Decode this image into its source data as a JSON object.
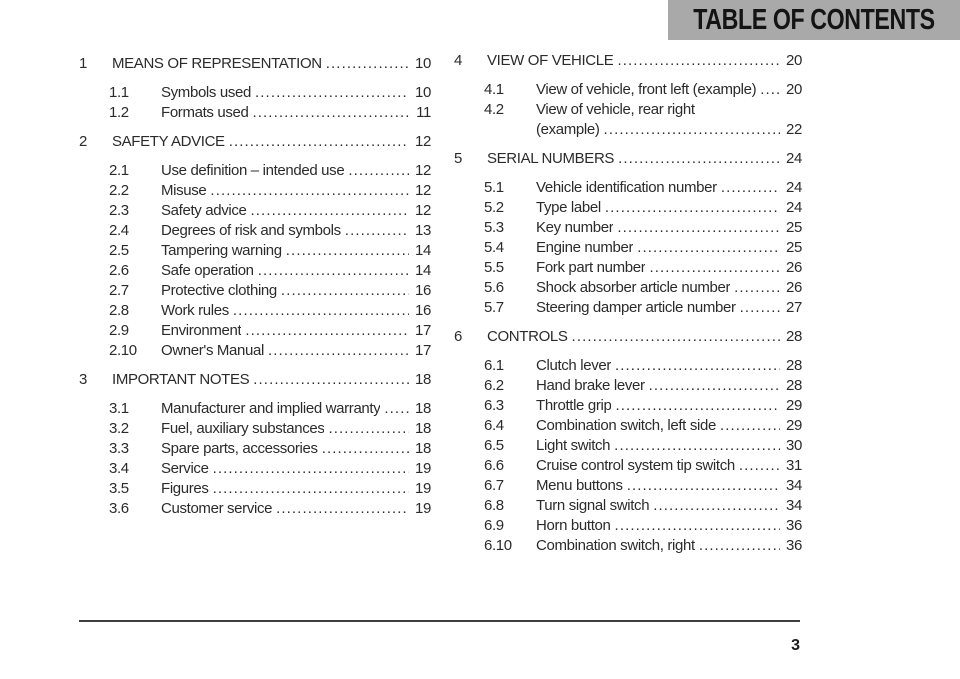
{
  "colors": {
    "header_bar": "#a9a9a9",
    "header_text": "#141414",
    "body_text": "#2b2b2b",
    "rule": "#3d3d3d"
  },
  "header": {
    "title": "TABLE OF CONTENTS"
  },
  "footer": {
    "page_number": "3"
  },
  "toc": {
    "columns": [
      {
        "sections": [
          {
            "number": "1",
            "title": "MEANS OF REPRESENTATION",
            "page": "10",
            "items": [
              {
                "number": "1.1",
                "title": "Symbols used",
                "page": "10"
              },
              {
                "number": "1.2",
                "title": "Formats used",
                "page": "11"
              }
            ]
          },
          {
            "number": "2",
            "title": "SAFETY ADVICE",
            "page": "12",
            "items": [
              {
                "number": "2.1",
                "title": "Use definition – intended use",
                "page": "12"
              },
              {
                "number": "2.2",
                "title": "Misuse",
                "page": "12"
              },
              {
                "number": "2.3",
                "title": "Safety advice",
                "page": "12"
              },
              {
                "number": "2.4",
                "title": "Degrees of risk and symbols",
                "page": "13"
              },
              {
                "number": "2.5",
                "title": "Tampering warning",
                "page": "14"
              },
              {
                "number": "2.6",
                "title": "Safe operation",
                "page": "14"
              },
              {
                "number": "2.7",
                "title": "Protective clothing",
                "page": "16"
              },
              {
                "number": "2.8",
                "title": "Work rules",
                "page": "16"
              },
              {
                "number": "2.9",
                "title": "Environment",
                "page": "17"
              },
              {
                "number": "2.10",
                "title": "Owner's Manual",
                "page": "17"
              }
            ]
          },
          {
            "number": "3",
            "title": "IMPORTANT NOTES",
            "page": "18",
            "items": [
              {
                "number": "3.1",
                "title": "Manufacturer and implied warranty",
                "page": "18"
              },
              {
                "number": "3.2",
                "title": "Fuel, auxiliary substances",
                "page": "18"
              },
              {
                "number": "3.3",
                "title": "Spare parts, accessories",
                "page": "18"
              },
              {
                "number": "3.4",
                "title": "Service",
                "page": "19"
              },
              {
                "number": "3.5",
                "title": "Figures",
                "page": "19"
              },
              {
                "number": "3.6",
                "title": "Customer service",
                "page": "19"
              }
            ]
          }
        ]
      },
      {
        "sections": [
          {
            "number": "4",
            "title": "VIEW OF VEHICLE",
            "page": "20",
            "items": [
              {
                "number": "4.1",
                "title": "View of vehicle, front left (example)",
                "page": "20"
              },
              {
                "number": "4.2",
                "title": "View of vehicle, rear right",
                "title_line2": "(example)",
                "page": "22"
              }
            ]
          },
          {
            "number": "5",
            "title": "SERIAL NUMBERS",
            "page": "24",
            "items": [
              {
                "number": "5.1",
                "title": "Vehicle identification number",
                "page": "24"
              },
              {
                "number": "5.2",
                "title": "Type label",
                "page": "24"
              },
              {
                "number": "5.3",
                "title": "Key number",
                "page": "25"
              },
              {
                "number": "5.4",
                "title": "Engine number",
                "page": "25"
              },
              {
                "number": "5.5",
                "title": "Fork part number",
                "page": "26"
              },
              {
                "number": "5.6",
                "title": "Shock absorber article number",
                "page": "26"
              },
              {
                "number": "5.7",
                "title": "Steering damper article number",
                "page": "27"
              }
            ]
          },
          {
            "number": "6",
            "title": "CONTROLS",
            "page": "28",
            "items": [
              {
                "number": "6.1",
                "title": "Clutch lever",
                "page": "28"
              },
              {
                "number": "6.2",
                "title": "Hand brake lever",
                "page": "28"
              },
              {
                "number": "6.3",
                "title": "Throttle grip",
                "page": "29"
              },
              {
                "number": "6.4",
                "title": "Combination switch, left side",
                "page": "29"
              },
              {
                "number": "6.5",
                "title": "Light switch",
                "page": "30"
              },
              {
                "number": "6.6",
                "title": "Cruise control system tip switch",
                "page": "31"
              },
              {
                "number": "6.7",
                "title": "Menu buttons",
                "page": "34"
              },
              {
                "number": "6.8",
                "title": "Turn signal switch",
                "page": "34"
              },
              {
                "number": "6.9",
                "title": "Horn button",
                "page": "36"
              },
              {
                "number": "6.10",
                "title": "Combination switch, right",
                "page": "36"
              }
            ]
          }
        ]
      }
    ]
  }
}
